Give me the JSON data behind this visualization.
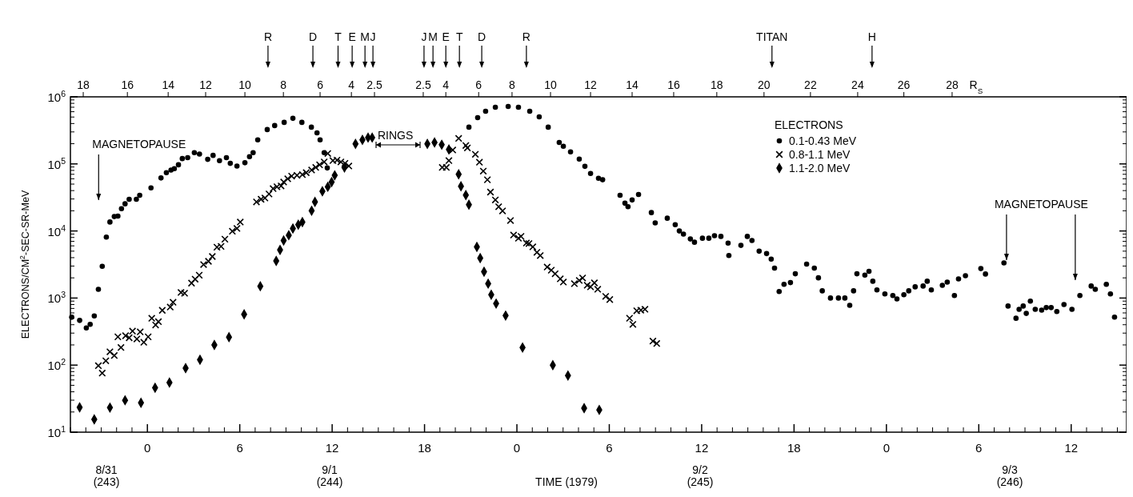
{
  "chart_data": {
    "type": "scatter",
    "xlabel": "TIME (1979)",
    "ylabel": "ELECTRONS/CM$^{2}$-SEC-SR-MeV",
    "x2label": "R$_{S}$",
    "legend_title": "ELECTRONS",
    "legend": "top right",
    "log": "y",
    "xlim": [
      "1979-08-31T19:00",
      "1979-09-03T15:36"
    ],
    "xticks": [
      {
        "value": "1979-09-01T00:00",
        "label": "0"
      },
      {
        "value": "1979-09-01T06:00",
        "label": "6"
      },
      {
        "value": "1979-09-01T12:00",
        "label": "12"
      },
      {
        "value": "1979-09-01T18:00",
        "label": "18"
      },
      {
        "value": "1979-09-02T00:00",
        "label": "0"
      },
      {
        "value": "1979-09-02T06:00",
        "label": "6"
      },
      {
        "value": "1979-09-02T12:00",
        "label": "12"
      },
      {
        "value": "1979-09-02T18:00",
        "label": "18"
      },
      {
        "value": "1979-09-03T00:00",
        "label": "0"
      },
      {
        "value": "1979-09-03T06:00",
        "label": "6"
      },
      {
        "value": "1979-09-03T12:00",
        "label": "12"
      }
    ],
    "x2lim": [
      "1979-08-31T19:00",
      "1979-09-03T15:36"
    ],
    "x2ticks": [
      {
        "value": "1979-08-31T19:50",
        "label": "18"
      },
      {
        "value": "1979-08-31T22:42",
        "label": "16"
      },
      {
        "value": "1979-09-01T01:21",
        "label": "14"
      },
      {
        "value": "1979-09-01T03:47",
        "label": "12"
      },
      {
        "value": "1979-09-01T06:20",
        "label": "10"
      },
      {
        "value": "1979-09-01T08:50",
        "label": "8"
      },
      {
        "value": "1979-09-01T11:13",
        "label": "6"
      },
      {
        "value": "1979-09-01T13:15",
        "label": "4"
      },
      {
        "value": "1979-09-01T14:45",
        "label": "2.5"
      },
      {
        "value": "1979-09-01T17:55",
        "label": "2.5"
      },
      {
        "value": "1979-09-01T19:23",
        "label": "4"
      },
      {
        "value": "1979-09-01T21:31",
        "label": "6"
      },
      {
        "value": "1979-09-01T23:41",
        "label": "8"
      },
      {
        "value": "1979-09-02T02:11",
        "label": "10"
      },
      {
        "value": "1979-09-02T04:47",
        "label": "12"
      },
      {
        "value": "1979-09-02T07:29",
        "label": "14"
      },
      {
        "value": "1979-09-02T10:11",
        "label": "16"
      },
      {
        "value": "1979-09-02T12:59",
        "label": "18"
      },
      {
        "value": "1979-09-02T16:03",
        "label": "20"
      },
      {
        "value": "1979-09-02T19:04",
        "label": "22"
      },
      {
        "value": "1979-09-02T22:08",
        "label": "24"
      },
      {
        "value": "1979-09-03T01:08",
        "label": "26"
      },
      {
        "value": "1979-09-03T04:16",
        "label": "28"
      }
    ],
    "ylim": [
      10,
      1000000
    ],
    "yticks": [
      {
        "value": 10,
        "label": "10$^{1}$"
      },
      {
        "value": 100,
        "label": "10$^{2}$"
      },
      {
        "value": 1000,
        "label": "10$^{3}$"
      },
      {
        "value": 10000,
        "label": "10$^{4}$"
      },
      {
        "value": 100000,
        "label": "10$^{5}$"
      },
      {
        "value": 1000000,
        "label": "10$^{6}$"
      }
    ],
    "ref_lines": [
      {
        "axis": "x",
        "value": "1979-08-31T20:50",
        "label": "MAGNETOPAUSE"
      },
      {
        "axis": "x",
        "value": "1979-09-03T07:48",
        "label": "MAGNETOPAUSE"
      },
      {
        "axis": "x",
        "value": "1979-09-03T12:16",
        "label": null
      },
      {
        "axis": "x2",
        "value": "1979-09-01T07:50",
        "label": "R"
      },
      {
        "axis": "x2",
        "value": "1979-09-01T10:45",
        "label": "D"
      },
      {
        "axis": "x2",
        "value": "1979-09-01T12:23",
        "label": "T"
      },
      {
        "axis": "x2",
        "value": "1979-09-01T13:18",
        "label": "E"
      },
      {
        "axis": "x2",
        "value": "1979-09-01T14:08",
        "label": "M"
      },
      {
        "axis": "x2",
        "value": "1979-09-01T14:39",
        "label": "J"
      },
      {
        "axis": "x2",
        "value": "1979-09-01T17:58",
        "label": "J"
      },
      {
        "axis": "x2",
        "value": "1979-09-01T18:33",
        "label": "M"
      },
      {
        "axis": "x2",
        "value": "1979-09-01T19:23",
        "label": "E"
      },
      {
        "axis": "x2",
        "value": "1979-09-01T20:16",
        "label": "T"
      },
      {
        "axis": "x2",
        "value": "1979-09-01T21:43",
        "label": "D"
      },
      {
        "axis": "x2",
        "value": "1979-09-02T00:37",
        "label": "R"
      },
      {
        "axis": "x2",
        "value": "1979-09-02T16:34",
        "label": "TITAN"
      },
      {
        "axis": "x2",
        "value": "1979-09-02T23:04",
        "label": "H"
      }
    ],
    "annotations": [
      "RINGS",
      "8/31\n(243)",
      "9/1\n(244)",
      "9/2\n(245)",
      "9/3\n(246)"
    ],
    "series": [
      {
        "name": "0.1-0.43 MeV",
        "color": "#000000",
        "marker": "circle",
        "x": [
          "1979-08-31T19:05",
          "1979-08-31T19:36",
          "1979-08-31T20:02",
          "1979-08-31T20:17",
          "1979-08-31T20:33",
          "1979-08-31T20:49",
          "1979-08-31T21:04",
          "1979-08-31T21:20",
          "1979-08-31T21:34",
          "1979-08-31T21:51",
          "1979-08-31T22:05",
          "1979-08-31T22:19",
          "1979-08-31T22:33",
          "1979-08-31T22:49",
          "1979-08-31T23:17",
          "1979-08-31T23:30",
          "1979-09-01T00:14",
          "1979-09-01T00:53",
          "1979-09-01T01:14",
          "1979-09-01T01:32",
          "1979-09-01T01:45",
          "1979-09-01T02:01",
          "1979-09-01T02:16",
          "1979-09-01T02:37",
          "1979-09-01T03:03",
          "1979-09-01T03:23",
          "1979-09-01T03:55",
          "1979-09-01T04:16",
          "1979-09-01T04:41",
          "1979-09-01T05:08",
          "1979-09-01T05:23",
          "1979-09-01T05:49",
          "1979-09-01T06:20",
          "1979-09-01T06:38",
          "1979-09-01T06:52",
          "1979-09-01T07:10",
          "1979-09-01T07:47",
          "1979-09-01T08:16",
          "1979-09-01T08:53",
          "1979-09-01T09:27",
          "1979-09-01T10:02",
          "1979-09-01T10:39",
          "1979-09-01T11:01",
          "1979-09-01T11:13",
          "1979-09-01T11:29",
          "1979-09-01T11:41",
          "1979-09-01T20:53",
          "1979-09-01T21:27",
          "1979-09-01T21:58",
          "1979-09-01T22:36",
          "1979-09-01T23:26",
          "1979-09-02T00:06",
          "1979-09-02T00:50",
          "1979-09-02T01:27",
          "1979-09-02T02:02",
          "1979-09-02T02:45",
          "1979-09-02T03:01",
          "1979-09-02T03:29",
          "1979-09-02T04:03",
          "1979-09-02T04:25",
          "1979-09-02T04:47",
          "1979-09-02T05:18",
          "1979-09-02T05:34",
          "1979-09-02T06:42",
          "1979-09-02T07:01",
          "1979-09-02T07:13",
          "1979-09-02T07:29",
          "1979-09-02T07:54",
          "1979-09-02T08:44",
          "1979-09-02T08:59",
          "1979-09-02T09:46",
          "1979-09-02T10:17",
          "1979-09-02T10:33",
          "1979-09-02T10:49",
          "1979-09-02T11:16",
          "1979-09-02T11:32",
          "1979-09-02T12:03",
          "1979-09-02T12:28",
          "1979-09-02T12:50",
          "1979-09-02T13:15",
          "1979-09-02T13:43",
          "1979-09-02T13:46",
          "1979-09-02T14:33",
          "1979-09-02T14:58",
          "1979-09-02T15:16",
          "1979-09-02T15:44",
          "1979-09-02T16:13",
          "1979-09-02T16:31",
          "1979-09-02T16:44",
          "1979-09-02T17:02",
          "1979-09-02T17:21",
          "1979-09-02T17:46",
          "1979-09-02T18:05",
          "1979-09-02T18:49",
          "1979-09-02T19:19",
          "1979-09-02T19:35",
          "1979-09-02T19:50",
          "1979-09-02T20:22",
          "1979-09-02T20:53",
          "1979-09-02T21:18",
          "1979-09-02T21:37",
          "1979-09-02T21:52",
          "1979-09-02T22:05",
          "1979-09-02T22:36",
          "1979-09-02T22:52",
          "1979-09-02T23:07",
          "1979-09-02T23:23",
          "1979-09-02T23:54",
          "1979-09-03T00:25",
          "1979-09-03T00:41",
          "1979-09-03T01:08",
          "1979-09-03T01:27",
          "1979-09-03T01:52",
          "1979-09-03T02:23",
          "1979-09-03T02:39",
          "1979-09-03T02:55",
          "1979-09-03T03:38",
          "1979-09-03T03:57",
          "1979-09-03T04:25",
          "1979-09-03T04:41",
          "1979-09-03T05:08",
          "1979-09-03T06:08",
          "1979-09-03T06:26",
          "1979-09-03T07:38",
          "1979-09-03T07:54",
          "1979-09-03T08:25",
          "1979-09-03T08:37",
          "1979-09-03T08:53",
          "1979-09-03T09:05",
          "1979-09-03T09:21",
          "1979-09-03T09:40",
          "1979-09-03T10:05",
          "1979-09-03T10:23",
          "1979-09-03T10:42",
          "1979-09-03T11:04",
          "1979-09-03T11:32",
          "1979-09-03T12:03",
          "1979-09-03T12:34",
          "1979-09-03T13:18",
          "1979-09-03T13:34",
          "1979-09-03T14:17",
          "1979-09-03T14:33",
          "1979-09-03T14:49"
        ],
        "values": [
          518,
          464,
          359,
          405,
          542,
          1350,
          2970,
          8100,
          13600,
          16400,
          16700,
          21500,
          25400,
          29700,
          29700,
          34000,
          44000,
          61700,
          74000,
          81000,
          85000,
          97000,
          120000,
          124000,
          147000,
          140000,
          117000,
          134000,
          112000,
          124000,
          102000,
          93000,
          104000,
          128000,
          147000,
          228000,
          325000,
          373000,
          416000,
          478000,
          416000,
          353000,
          291000,
          228000,
          147000,
          87000,
          353000,
          490000,
          611000,
          700000,
          720000,
          700000,
          611000,
          504000,
          353000,
          209000,
          183000,
          151000,
          118000,
          92000,
          72000,
          61000,
          58000,
          34000,
          26000,
          23000,
          29000,
          35000,
          18800,
          13200,
          15500,
          12400,
          10000,
          9000,
          7600,
          6800,
          7800,
          7800,
          8500,
          8300,
          6600,
          4300,
          6100,
          8300,
          7200,
          5000,
          4600,
          3800,
          2800,
          1250,
          1600,
          1700,
          2300,
          3200,
          2800,
          2000,
          1280,
          1000,
          1000,
          1000,
          780,
          1280,
          2300,
          2200,
          2500,
          1780,
          1320,
          1150,
          1090,
          970,
          1120,
          1280,
          1470,
          1510,
          1780,
          1320,
          1550,
          1730,
          1090,
          1930,
          2150,
          2750,
          2280,
          3340,
          760,
          500,
          680,
          760,
          590,
          900,
          680,
          660,
          720,
          720,
          630,
          800,
          680,
          1090,
          1510,
          1350,
          1600,
          1150,
          520
        ]
      },
      {
        "name": "0.8-1.1 MeV",
        "color": "#000000",
        "marker": "cross",
        "x": [
          "1979-08-31T20:49",
          "1979-08-31T21:04",
          "1979-08-31T21:18",
          "1979-08-31T21:34",
          "1979-08-31T21:51",
          "1979-08-31T22:05",
          "1979-08-31T22:17",
          "1979-08-31T22:35",
          "1979-08-31T22:49",
          "1979-08-31T23:02",
          "1979-08-31T23:19",
          "1979-08-31T23:32",
          "1979-08-31T23:46",
          "1979-09-01T00:03",
          "1979-09-01T00:17",
          "1979-09-01T00:32",
          "1979-09-01T00:43",
          "1979-09-01T00:58",
          "1979-09-01T01:29",
          "1979-09-01T01:40",
          "1979-09-01T02:11",
          "1979-09-01T02:25",
          "1979-09-01T02:52",
          "1979-09-01T03:06",
          "1979-09-01T03:22",
          "1979-09-01T03:39",
          "1979-09-01T03:58",
          "1979-09-01T04:13",
          "1979-09-01T04:31",
          "1979-09-01T04:47",
          "1979-09-01T05:02",
          "1979-09-01T05:31",
          "1979-09-01T05:49",
          "1979-09-01T06:02",
          "1979-09-01T07:05",
          "1979-09-01T07:23",
          "1979-09-01T07:38",
          "1979-09-01T07:54",
          "1979-09-01T08:10",
          "1979-09-01T08:25",
          "1979-09-01T08:41",
          "1979-09-01T08:51",
          "1979-09-01T09:07",
          "1979-09-01T09:22",
          "1979-09-01T09:43",
          "1979-09-01T10:04",
          "1979-09-01T10:19",
          "1979-09-01T10:40",
          "1979-09-01T10:56",
          "1979-09-01T11:11",
          "1979-09-01T11:29",
          "1979-09-01T11:43",
          "1979-09-01T12:03",
          "1979-09-01T12:19",
          "1979-09-01T12:34",
          "1979-09-01T12:50",
          "1979-09-01T13:05",
          "1979-09-01T19:09",
          "1979-09-01T19:25",
          "1979-09-01T19:35",
          "1979-09-01T19:50",
          "1979-09-01T20:13",
          "1979-09-01T20:41",
          "1979-09-01T20:47",
          "1979-09-01T21:18",
          "1979-09-01T21:34",
          "1979-09-01T21:49",
          "1979-09-01T22:05",
          "1979-09-01T22:17",
          "1979-09-01T22:36",
          "1979-09-01T22:49",
          "1979-09-01T23:04",
          "1979-09-01T23:35",
          "1979-09-01T23:47",
          "1979-09-02T00:06",
          "1979-09-02T00:16",
          "1979-09-02T00:37",
          "1979-09-02T00:47",
          "1979-09-02T01:02",
          "1979-09-02T01:18",
          "1979-09-02T01:31",
          "1979-09-02T01:58",
          "1979-09-02T02:14",
          "1979-09-02T02:29",
          "1979-09-02T02:49",
          "1979-09-02T03:01",
          "1979-09-02T03:44",
          "1979-09-02T04:03",
          "1979-09-02T04:16",
          "1979-09-02T04:34",
          "1979-09-02T04:47",
          "1979-09-02T05:02",
          "1979-09-02T05:15",
          "1979-09-02T05:46",
          "1979-09-02T06:02",
          "1979-09-02T07:19",
          "1979-09-02T07:32",
          "1979-09-02T07:47",
          "1979-09-02T08:03",
          "1979-09-02T08:19",
          "1979-09-02T08:50",
          "1979-09-02T09:05"
        ],
        "values": [
          98,
          76,
          116,
          158,
          139,
          264,
          183,
          274,
          256,
          322,
          245,
          313,
          219,
          264,
          499,
          397,
          444,
          656,
          733,
          865,
          1210,
          1180,
          1670,
          1910,
          2190,
          3160,
          3530,
          4160,
          5730,
          5890,
          7540,
          9910,
          10900,
          13600,
          27100,
          29700,
          31000,
          35600,
          42800,
          45600,
          46900,
          53700,
          60000,
          65700,
          67500,
          69300,
          74000,
          81000,
          88700,
          97000,
          107000,
          143000,
          112000,
          114000,
          107000,
          102000,
          93000,
          88700,
          88700,
          112000,
          161000,
          240000,
          188000,
          173000,
          139000,
          106000,
          78000,
          58000,
          38000,
          29000,
          23000,
          19900,
          14300,
          8700,
          7800,
          8300,
          6600,
          6500,
          5800,
          4800,
          4300,
          2900,
          2600,
          2300,
          1930,
          1730,
          1640,
          1830,
          1990,
          1550,
          1470,
          1680,
          1350,
          1060,
          950,
          500,
          405,
          645,
          660,
          680,
          228,
          210
        ]
      },
      {
        "name": "1.1-2.0 MeV",
        "color": "#000000",
        "marker": "diamond",
        "x": [
          "1979-08-31T19:36",
          "1979-08-31T20:33",
          "1979-08-31T21:34",
          "1979-08-31T22:33",
          "1979-08-31T23:35",
          "1979-09-01T00:30",
          "1979-09-01T01:26",
          "1979-09-01T02:29",
          "1979-09-01T03:25",
          "1979-09-01T04:21",
          "1979-09-01T05:18",
          "1979-09-01T06:17",
          "1979-09-01T07:20",
          "1979-09-01T08:22",
          "1979-09-01T08:37",
          "1979-09-01T08:51",
          "1979-09-01T09:11",
          "1979-09-01T09:27",
          "1979-09-01T09:48",
          "1979-09-01T10:04",
          "1979-09-01T10:40",
          "1979-09-01T10:53",
          "1979-09-01T11:22",
          "1979-09-01T11:43",
          "1979-09-01T11:58",
          "1979-09-01T12:10",
          "1979-09-01T12:48",
          "1979-09-01T13:31",
          "1979-09-01T13:58",
          "1979-09-01T14:20",
          "1979-09-01T14:36",
          "1979-09-01T18:11",
          "1979-09-01T18:39",
          "1979-09-01T19:07",
          "1979-09-01T19:35",
          "1979-09-01T20:13",
          "1979-09-01T20:22",
          "1979-09-01T20:41",
          "1979-09-01T20:53",
          "1979-09-01T21:24",
          "1979-09-01T21:37",
          "1979-09-01T21:52",
          "1979-09-01T22:08",
          "1979-09-01T22:20",
          "1979-09-01T22:39",
          "1979-09-01T23:16",
          "1979-09-02T00:22",
          "1979-09-02T02:20",
          "1979-09-02T03:19",
          "1979-09-02T04:22",
          "1979-09-02T05:21"
        ],
        "values": [
          23.4,
          15.5,
          23.2,
          29.9,
          27.4,
          46,
          55,
          90,
          120,
          200,
          261,
          573,
          1500,
          3570,
          5220,
          7200,
          8650,
          10900,
          12400,
          13600,
          20000,
          27100,
          39000,
          45600,
          53700,
          67500,
          88700,
          199000,
          228000,
          247000,
          247000,
          199000,
          209000,
          193000,
          164000,
          70000,
          46400,
          34300,
          24700,
          5780,
          3940,
          2470,
          1640,
          1120,
          826,
          547,
          183,
          100,
          70,
          22.8,
          21.5
        ]
      }
    ]
  }
}
